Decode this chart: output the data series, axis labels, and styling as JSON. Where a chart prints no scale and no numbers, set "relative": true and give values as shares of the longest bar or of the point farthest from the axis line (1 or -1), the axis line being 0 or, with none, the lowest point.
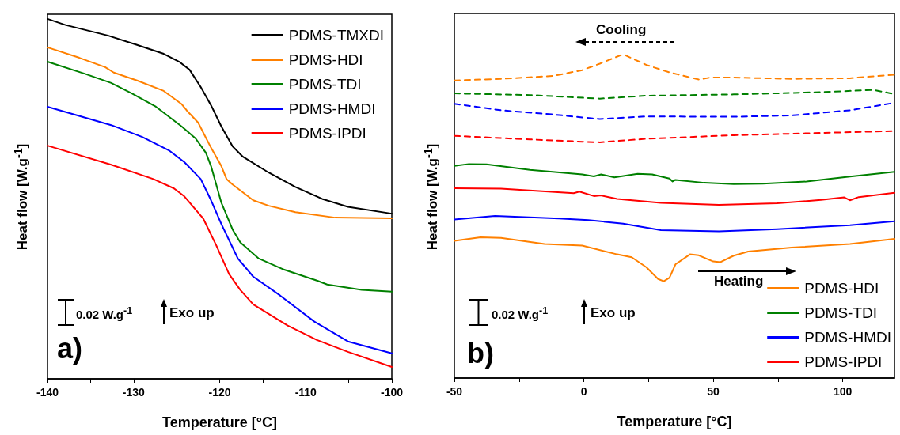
{
  "chart_data": [
    {
      "type": "line",
      "relative": true,
      "xlabel": "Temperature [°C]",
      "ylabel": "Heat flow [W.g$^{-1}$]",
      "legend": "top right",
      "line_style": "solid",
      "marker": "none",
      "grid": false,
      "xlim": [
        -140,
        -100
      ],
      "xticks": [
        -140,
        {
          "value": -135,
          "label": null
        },
        -130,
        {
          "value": -125,
          "label": null
        },
        -120,
        {
          "value": -115,
          "label": null
        },
        -110,
        {
          "value": -105,
          "label": null
        },
        -100
      ],
      "annotations": [
        "0.02 W.g$^{-1}$",
        "Exo up",
        "a)"
      ],
      "series": [
        {
          "name": "PDMS-TMXDI",
          "color": "#000000",
          "x": [
            -140,
            -137.9,
            -133,
            -129.6,
            -126.5,
            -124.7,
            -123.5,
            -122.2,
            -121,
            -119.8,
            -118.5,
            -117.3,
            -114.3,
            -111.2,
            -108.1,
            -105.1,
            -100
          ],
          "values": [
            1.0,
            0.983,
            0.954,
            0.928,
            0.903,
            0.881,
            0.859,
            0.811,
            0.76,
            0.701,
            0.646,
            0.617,
            0.573,
            0.533,
            0.5,
            0.478,
            0.459
          ]
        },
        {
          "name": "PDMS-HDI",
          "color": "#ff8000",
          "x": [
            -140,
            -136.3,
            -133.3,
            -132.3,
            -129.6,
            -126.5,
            -124.4,
            -123.8,
            -122.5,
            -121,
            -119.8,
            -119.2,
            -118.5,
            -116.7,
            -116.1,
            -114.3,
            -111.2,
            -106.6,
            -100
          ],
          "values": [
            0.921,
            0.892,
            0.866,
            0.851,
            0.829,
            0.8,
            0.763,
            0.745,
            0.712,
            0.642,
            0.591,
            0.555,
            0.54,
            0.507,
            0.496,
            0.481,
            0.463,
            0.448,
            0.446
          ]
        },
        {
          "name": "PDMS-TDI",
          "color": "#008000",
          "x": [
            -140,
            -135.7,
            -132.6,
            -130.2,
            -127.4,
            -124.4,
            -122.8,
            -121.6,
            -121,
            -120.4,
            -119.8,
            -118.5,
            -117.6,
            -115.5,
            -112.7,
            -108.7,
            -107.5,
            -103.5,
            -100
          ],
          "values": [
            0.881,
            0.848,
            0.822,
            0.793,
            0.756,
            0.701,
            0.668,
            0.628,
            0.591,
            0.54,
            0.489,
            0.415,
            0.379,
            0.335,
            0.305,
            0.273,
            0.262,
            0.247,
            0.242
          ]
        },
        {
          "name": "PDMS-HMDI",
          "color": "#0000ff",
          "x": [
            -140,
            -132.6,
            -129,
            -125.9,
            -124.1,
            -122.2,
            -121,
            -119.8,
            -117.9,
            -116.1,
            -113,
            -109,
            -105.1,
            -100
          ],
          "values": [
            0.756,
            0.705,
            0.672,
            0.635,
            0.602,
            0.555,
            0.496,
            0.43,
            0.335,
            0.284,
            0.232,
            0.159,
            0.104,
            0.071
          ]
        },
        {
          "name": "PDMS-IPDI",
          "color": "#ff0000",
          "x": [
            -140,
            -132.6,
            -127.7,
            -125.3,
            -124.1,
            -121.9,
            -120.4,
            -118.9,
            -117.6,
            -116.1,
            -113.6,
            -112.1,
            -108.7,
            -105.1,
            -100
          ],
          "values": [
            0.648,
            0.595,
            0.555,
            0.529,
            0.507,
            0.445,
            0.371,
            0.291,
            0.247,
            0.207,
            0.17,
            0.148,
            0.108,
            0.075,
            0.033
          ]
        }
      ]
    },
    {
      "type": "line",
      "relative": true,
      "xlabel": "Temperature [°C]",
      "ylabel": "Heat flow [W.g$^{-1}$]",
      "legend": "bottom right",
      "line_style": "solid",
      "marker": "none",
      "grid": false,
      "xlim": [
        -50,
        120
      ],
      "xticks": [
        -50,
        {
          "value": -25,
          "label": null
        },
        0,
        {
          "value": 25,
          "label": null
        },
        50,
        {
          "value": 75,
          "label": null
        },
        100
      ],
      "annotations": [
        "Cooling",
        "Heating",
        "0.02 W.g$^{-1}$",
        "Exo up",
        "b)"
      ],
      "series": [
        {
          "color": "#ff8000",
          "line_style": "dashed",
          "x": [
            -50,
            -32,
            -11.8,
            -0.6,
            6.2,
            15.2,
            24.2,
            33.1,
            44.4,
            48.9,
            57.9,
            80.3,
            102.8,
            120
          ],
          "values": [
            0.919,
            0.924,
            0.933,
            0.951,
            0.971,
            1.0,
            0.967,
            0.944,
            0.922,
            0.928,
            0.928,
            0.924,
            0.926,
            0.937
          ]
        },
        {
          "color": "#008000",
          "line_style": "dashed",
          "x": [
            -50,
            -20.8,
            6.2,
            24.2,
            57.9,
            91.6,
            111.8,
            120
          ],
          "values": [
            0.879,
            0.874,
            0.863,
            0.872,
            0.876,
            0.883,
            0.89,
            0.877
          ]
        },
        {
          "color": "#0000ff",
          "line_style": "dashed",
          "x": [
            -50,
            -32,
            -11.8,
            -0.6,
            6.2,
            24.2,
            57.9,
            80.3,
            102.8,
            120
          ],
          "values": [
            0.847,
            0.827,
            0.814,
            0.805,
            0.8,
            0.808,
            0.807,
            0.811,
            0.827,
            0.85
          ]
        },
        {
          "color": "#ff0000",
          "line_style": "dashed",
          "x": [
            -50,
            -20.8,
            -0.6,
            6.2,
            24.2,
            57.9,
            91.6,
            120
          ],
          "values": [
            0.748,
            0.737,
            0.73,
            0.728,
            0.739,
            0.75,
            0.757,
            0.763
          ]
        },
        {
          "name": "PDMS-HDI",
          "color": "#ff8000",
          "x": [
            -50,
            -39.9,
            -32,
            -15.2,
            -0.6,
            12.9,
            18.5,
            24.2,
            28.7,
            30.9,
            33.1,
            35.4,
            41,
            44.4,
            50,
            52.8,
            57.9,
            63.5,
            80.3,
            102.8,
            120
          ],
          "values": [
            0.424,
            0.435,
            0.433,
            0.414,
            0.409,
            0.382,
            0.373,
            0.342,
            0.306,
            0.299,
            0.31,
            0.351,
            0.382,
            0.379,
            0.36,
            0.358,
            0.378,
            0.391,
            0.403,
            0.414,
            0.43
          ]
        },
        {
          "name": "PDMS-TDI",
          "color": "#008000",
          "x": [
            -50,
            -44.4,
            -37.6,
            -20.8,
            -0.6,
            3.9,
            6.7,
            11.8,
            20.8,
            26.4,
            33.1,
            34.3,
            35.4,
            46.6,
            57.9,
            69.1,
            86,
            102.8,
            120
          ],
          "values": [
            0.655,
            0.661,
            0.66,
            0.643,
            0.629,
            0.623,
            0.629,
            0.62,
            0.631,
            0.629,
            0.616,
            0.607,
            0.612,
            0.603,
            0.599,
            0.6,
            0.607,
            0.622,
            0.637
          ]
        },
        {
          "name": "PDMS-HMDI",
          "color": "#0000ff",
          "x": [
            -50,
            -34.3,
            -9.6,
            1.7,
            15.2,
            29.8,
            52.2,
            74.7,
            102.8,
            120
          ],
          "values": [
            0.49,
            0.501,
            0.493,
            0.488,
            0.477,
            0.457,
            0.453,
            0.46,
            0.472,
            0.484
          ]
        },
        {
          "name": "PDMS-IPDI",
          "color": "#ff0000",
          "x": [
            -50,
            -32,
            -3.9,
            -1.7,
            3.9,
            6.7,
            12.9,
            29.8,
            52.2,
            74.7,
            91.6,
            100.6,
            102.8,
            106.2,
            120
          ],
          "values": [
            0.586,
            0.585,
            0.571,
            0.576,
            0.562,
            0.564,
            0.553,
            0.541,
            0.535,
            0.54,
            0.55,
            0.558,
            0.549,
            0.559,
            0.572
          ]
        }
      ]
    }
  ]
}
